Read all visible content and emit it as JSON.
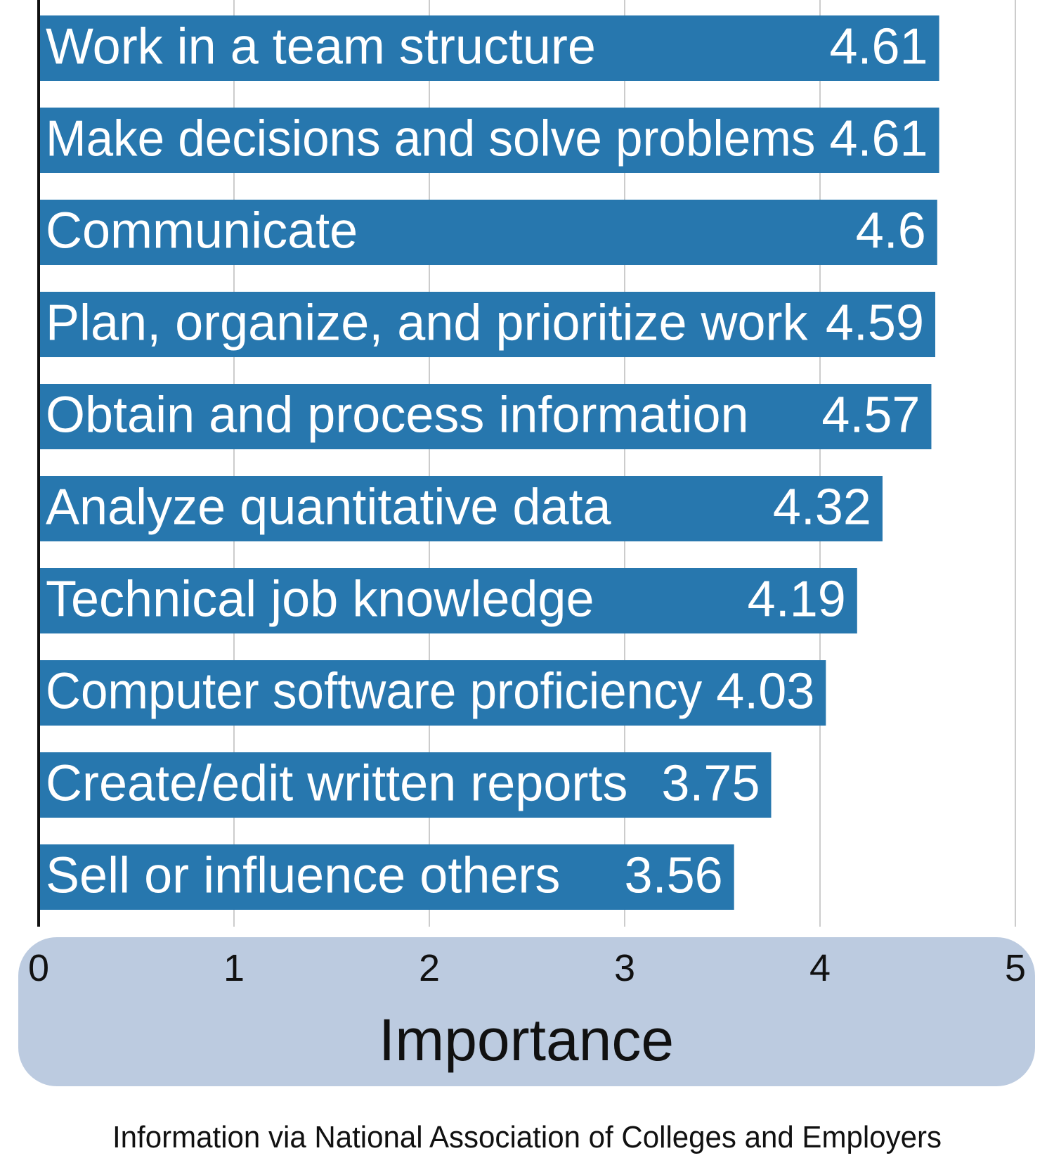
{
  "colors": {
    "bar": "#2777ae",
    "bar_text": "#ffffff",
    "axis_band": "#bccbe0",
    "gridline": "#cccccc",
    "axis_line": "#111111"
  },
  "chart_data": {
    "type": "bar",
    "orientation": "horizontal",
    "categories": [
      "Work in a team structure",
      "Make decisions and solve problems",
      "Communicate",
      "Plan, organize, and prioritize work",
      "Obtain and process information",
      "Analyze quantitative data",
      "Technical job knowledge",
      "Computer software proficiency",
      "Create/edit written reports",
      "Sell or influence others"
    ],
    "values": [
      4.61,
      4.61,
      4.6,
      4.59,
      4.57,
      4.32,
      4.19,
      4.03,
      3.75,
      3.56
    ],
    "value_labels": [
      "4.61",
      "4.61",
      "4.6",
      "4.59",
      "4.57",
      "4.32",
      "4.19",
      "4.03",
      "3.75",
      "3.56"
    ],
    "xlim": [
      0,
      5
    ],
    "xticks": [
      0,
      1,
      2,
      3,
      4,
      5
    ],
    "xtick_labels": [
      "0",
      "1",
      "2",
      "3",
      "4",
      "5"
    ],
    "xlabel": "Importance",
    "ylabel": "",
    "grid": true,
    "source": "Information via National Association of Colleges and Employers"
  }
}
